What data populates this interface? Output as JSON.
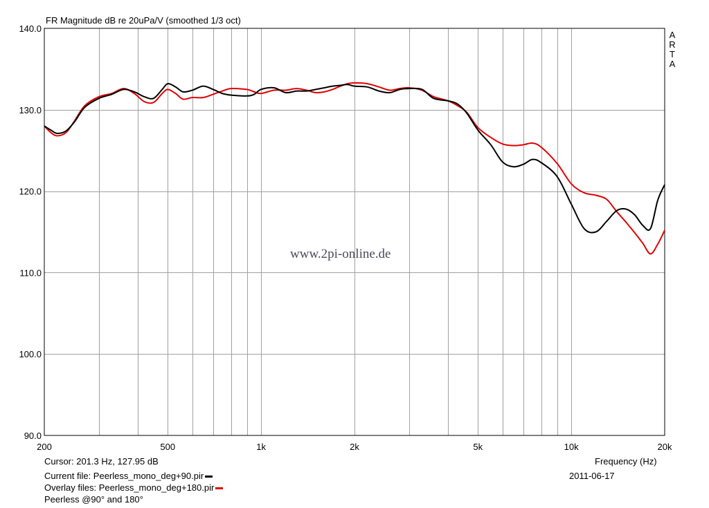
{
  "header": {
    "title": "FR Magnitude dB re 20uPa/V (smoothed 1/3 oct)"
  },
  "brand": {
    "letters": [
      "A",
      "R",
      "T",
      "A"
    ]
  },
  "watermark": "www.2pi-online.de",
  "footer": {
    "cursor": "Cursor: 201.3 Hz, 127.95 dB",
    "current_file": "Current file: Peerless_mono_deg+90.pir",
    "overlay_files": "Overlay files: Peerless_mono_deg+180.pir",
    "comment": "Peerless @90° and 180°",
    "frequency_label": "Frequency (Hz)",
    "date": "2011-06-17"
  },
  "colors": {
    "current": "#000000",
    "overlay": "#e00000",
    "grid": "#a0a0a0",
    "background": "#ffffff"
  },
  "chart_data": {
    "type": "line",
    "title": "FR Magnitude dB re 20uPa/V (smoothed 1/3 oct)",
    "xlabel": "Frequency (Hz)",
    "ylabel": "",
    "xscale": "log",
    "xlim": [
      200,
      20000
    ],
    "ylim": [
      90,
      140
    ],
    "grid": true,
    "x_ticks": [
      200,
      500,
      1000,
      2000,
      5000,
      10000,
      20000
    ],
    "x_tick_labels": [
      "200",
      "500",
      "1k",
      "2k",
      "5k",
      "10k",
      "20k"
    ],
    "y_ticks": [
      90,
      100,
      110,
      120,
      130,
      140
    ],
    "y_tick_labels": [
      "90.0",
      "100.0",
      "110.0",
      "120.0",
      "130.0",
      "140.0"
    ],
    "series": [
      {
        "name": "Peerless_mono_deg+90.pir",
        "color": "#000000",
        "x": [
          200,
          210,
          220,
          235,
          250,
          270,
          300,
          330,
          360,
          390,
          420,
          450,
          480,
          500,
          530,
          560,
          600,
          650,
          700,
          750,
          800,
          900,
          950,
          1000,
          1100,
          1200,
          1300,
          1400,
          1500,
          1600,
          1700,
          1800,
          1900,
          2000,
          2200,
          2400,
          2600,
          2800,
          3000,
          3300,
          3600,
          4000,
          4300,
          4600,
          5000,
          5500,
          6000,
          6500,
          7000,
          7500,
          8000,
          9000,
          10000,
          11000,
          12000,
          13000,
          14000,
          15000,
          16000,
          17000,
          18000,
          19000,
          20000
        ],
        "y": [
          128.0,
          127.5,
          127.1,
          127.4,
          128.5,
          130.3,
          131.4,
          131.9,
          132.5,
          132.2,
          131.6,
          131.4,
          132.5,
          133.2,
          132.8,
          132.2,
          132.4,
          132.9,
          132.5,
          132.0,
          131.8,
          131.7,
          131.9,
          132.5,
          132.7,
          132.1,
          132.3,
          132.3,
          132.5,
          132.7,
          132.9,
          133.0,
          133.1,
          132.9,
          132.8,
          132.3,
          132.1,
          132.5,
          132.6,
          132.5,
          131.4,
          131.1,
          130.7,
          129.6,
          127.5,
          125.7,
          123.6,
          123.0,
          123.3,
          123.9,
          123.5,
          121.8,
          118.4,
          115.4,
          115.0,
          116.3,
          117.6,
          117.8,
          117.1,
          115.8,
          115.4,
          118.9,
          120.8
        ]
      },
      {
        "name": "Peerless_mono_deg+180.pir",
        "color": "#e00000",
        "x": [
          200,
          210,
          220,
          235,
          250,
          270,
          300,
          330,
          360,
          390,
          420,
          450,
          480,
          500,
          530,
          560,
          600,
          650,
          700,
          750,
          800,
          900,
          950,
          1000,
          1100,
          1200,
          1300,
          1400,
          1500,
          1600,
          1700,
          1800,
          1900,
          2000,
          2200,
          2400,
          2600,
          2800,
          3000,
          3300,
          3600,
          4000,
          4300,
          4600,
          5000,
          5500,
          6000,
          6500,
          7000,
          7500,
          8000,
          9000,
          10000,
          11000,
          12000,
          13000,
          14000,
          15000,
          16000,
          17000,
          18000,
          19000,
          20000
        ],
        "y": [
          128.0,
          127.2,
          126.8,
          127.2,
          128.6,
          130.5,
          131.6,
          132.0,
          132.6,
          132.0,
          131.0,
          130.9,
          132.0,
          132.5,
          132.0,
          131.3,
          131.5,
          131.5,
          131.9,
          132.3,
          132.6,
          132.5,
          132.2,
          132.0,
          132.4,
          132.4,
          132.6,
          132.4,
          132.1,
          132.2,
          132.5,
          132.9,
          133.2,
          133.3,
          133.2,
          132.8,
          132.4,
          132.6,
          132.7,
          132.4,
          131.6,
          131.1,
          130.5,
          129.7,
          127.8,
          126.6,
          125.8,
          125.6,
          125.7,
          125.9,
          125.4,
          123.4,
          120.9,
          119.8,
          119.5,
          119.0,
          117.5,
          116.2,
          114.9,
          113.6,
          112.3,
          113.5,
          115.2
        ]
      }
    ]
  }
}
